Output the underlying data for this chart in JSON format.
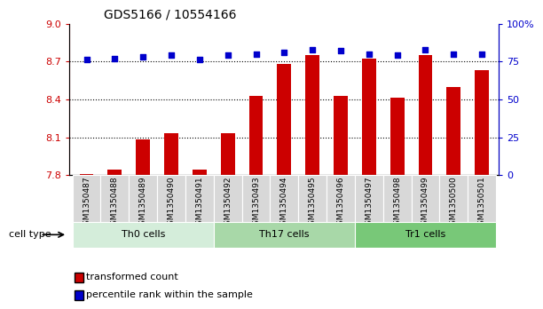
{
  "title": "GDS5166 / 10554166",
  "samples": [
    "GSM1350487",
    "GSM1350488",
    "GSM1350489",
    "GSM1350490",
    "GSM1350491",
    "GSM1350492",
    "GSM1350493",
    "GSM1350494",
    "GSM1350495",
    "GSM1350496",
    "GSM1350497",
    "GSM1350498",
    "GSM1350499",
    "GSM1350500",
    "GSM1350501"
  ],
  "bar_values": [
    7.81,
    7.84,
    8.08,
    8.13,
    7.84,
    8.13,
    8.43,
    8.68,
    8.75,
    8.43,
    8.72,
    8.41,
    8.75,
    8.5,
    8.63
  ],
  "dot_values": [
    76,
    77,
    78,
    79,
    76,
    79,
    80,
    81,
    83,
    82,
    80,
    79,
    83,
    80,
    80
  ],
  "bar_color": "#cc0000",
  "dot_color": "#0000cc",
  "ylim_left": [
    7.8,
    9.0
  ],
  "ylim_right": [
    0,
    100
  ],
  "yticks_left": [
    7.8,
    8.1,
    8.4,
    8.7,
    9.0
  ],
  "yticks_right": [
    0,
    25,
    50,
    75,
    100
  ],
  "ytick_labels_right": [
    "0",
    "25",
    "50",
    "75",
    "100%"
  ],
  "grid_values": [
    8.1,
    8.4,
    8.7
  ],
  "cell_groups": [
    {
      "label": "Th0 cells",
      "start": 0,
      "end": 5,
      "color": "#d4edda"
    },
    {
      "label": "Th17 cells",
      "start": 5,
      "end": 10,
      "color": "#a8d8a8"
    },
    {
      "label": "Tr1 cells",
      "start": 10,
      "end": 15,
      "color": "#78c878"
    }
  ],
  "legend_bar_label": "transformed count",
  "legend_dot_label": "percentile rank within the sample",
  "cell_type_label": "cell type",
  "bg_color": "#d8d8d8"
}
